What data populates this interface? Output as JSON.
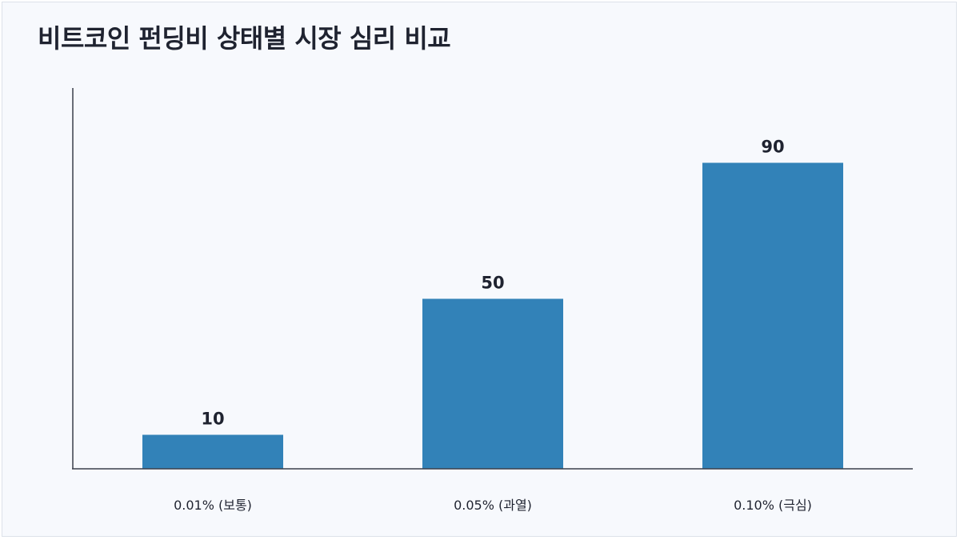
{
  "chart_data": {
    "type": "bar",
    "title": "비트코인 펀딩비 상태별 시장 심리 비교",
    "xlabel": "",
    "ylabel": "",
    "categories": [
      "0.01% (보통)",
      "0.05% (과열)",
      "0.10% (극심)"
    ],
    "values": [
      10,
      50,
      90
    ],
    "ylim": [
      0,
      112
    ],
    "grid": false,
    "legend": "none",
    "bar_color": "#3282b8",
    "axis_color": "#3a3f4b",
    "text_color": "#1f2330"
  }
}
